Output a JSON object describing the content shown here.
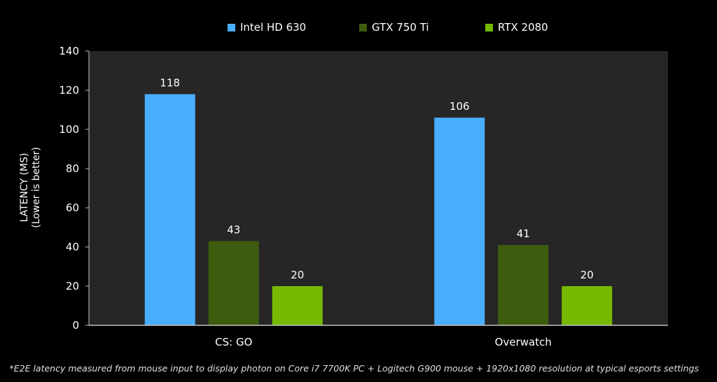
{
  "chart_data": {
    "type": "bar",
    "title": "",
    "categories": [
      "CS: GO",
      "Overwatch"
    ],
    "series": [
      {
        "name": "Intel HD 630",
        "color": "#4aaeff",
        "values": [
          118,
          106
        ]
      },
      {
        "name": "GTX 750 Ti",
        "color": "#3d5c0e",
        "values": [
          43,
          41
        ]
      },
      {
        "name": "RTX 2080",
        "color": "#76b900",
        "values": [
          20,
          20
        ]
      }
    ],
    "ylabel_line1": "LATENCY (MS)",
    "ylabel_line2": "(Lower is better)",
    "ylim": [
      0,
      140
    ],
    "yticks": [
      0,
      20,
      40,
      60,
      80,
      100,
      120,
      140
    ],
    "grid": false,
    "legend": "top-center",
    "data_labels": true,
    "plot_background": "#262626"
  },
  "footnote": "*E2E latency measured from mouse input to display photon on Core i7 7700K PC + Logitech G900 mouse + 1920x1080 resolution at typical esports settings"
}
